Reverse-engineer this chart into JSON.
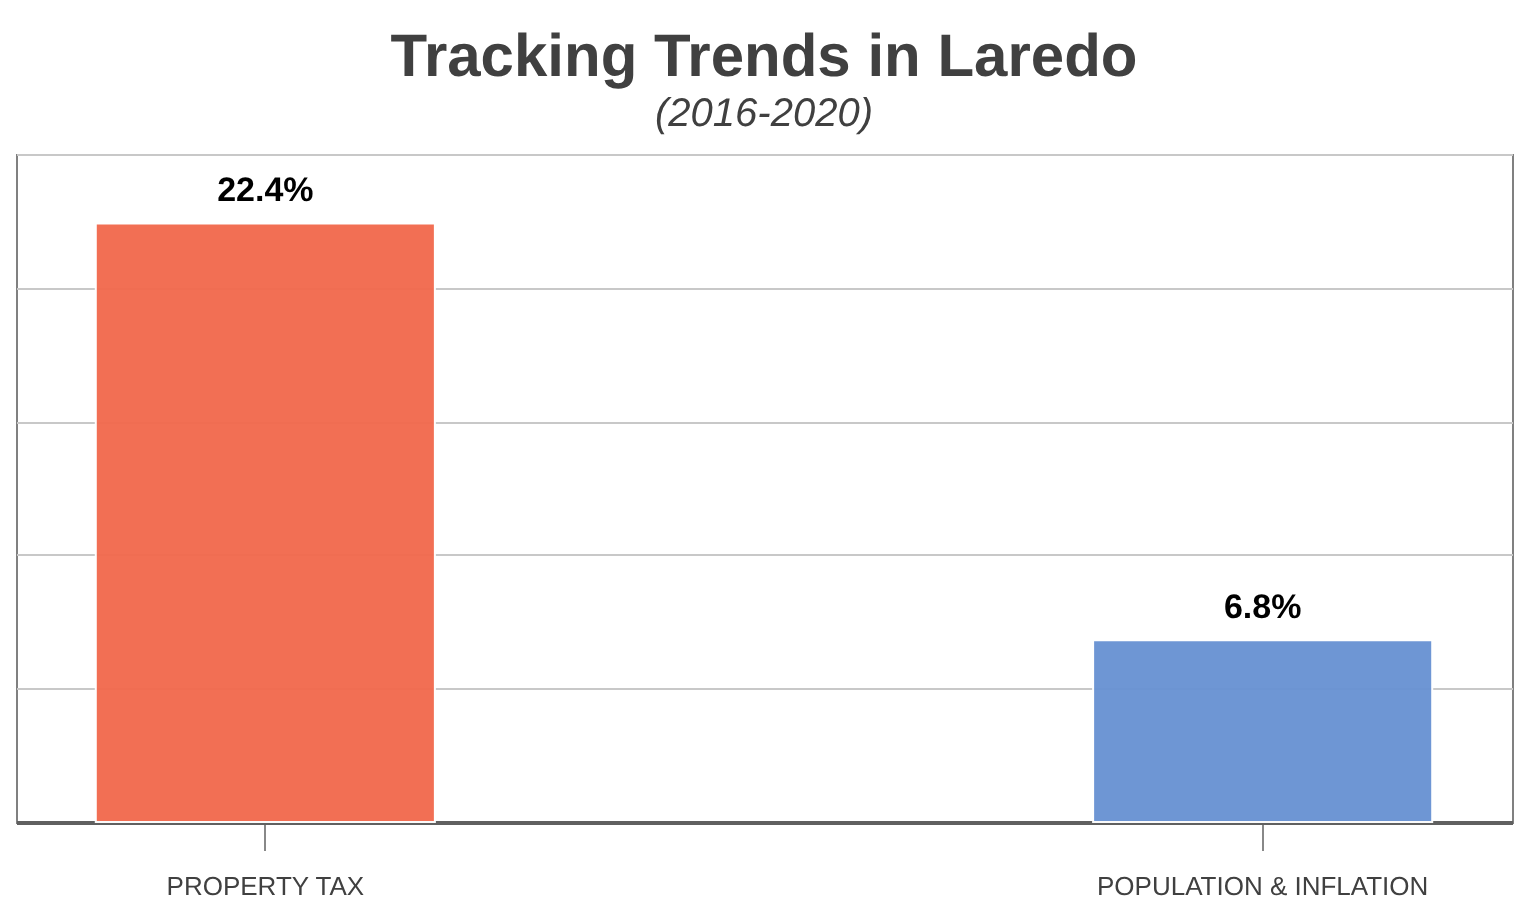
{
  "chart_data": {
    "type": "bar",
    "title": "Tracking Trends in Laredo",
    "subtitle": "(2016-2020)",
    "categories": [
      "PROPERTY TAX",
      "POPULATION & INFLATION"
    ],
    "values": [
      22.4,
      6.8
    ],
    "colors": [
      "#f26b4f",
      "#6a93d3"
    ],
    "value_labels": [
      "22.4%",
      "6.8%"
    ],
    "ylim": [
      0,
      25
    ],
    "yticks": [
      {
        "value": 0,
        "label": null
      },
      {
        "value": 5,
        "label": null
      },
      {
        "value": 10,
        "label": null
      },
      {
        "value": 15,
        "label": null
      },
      {
        "value": 20,
        "label": null
      },
      {
        "value": 25,
        "label": null
      }
    ],
    "grid": "y",
    "tick_labels": "x"
  }
}
